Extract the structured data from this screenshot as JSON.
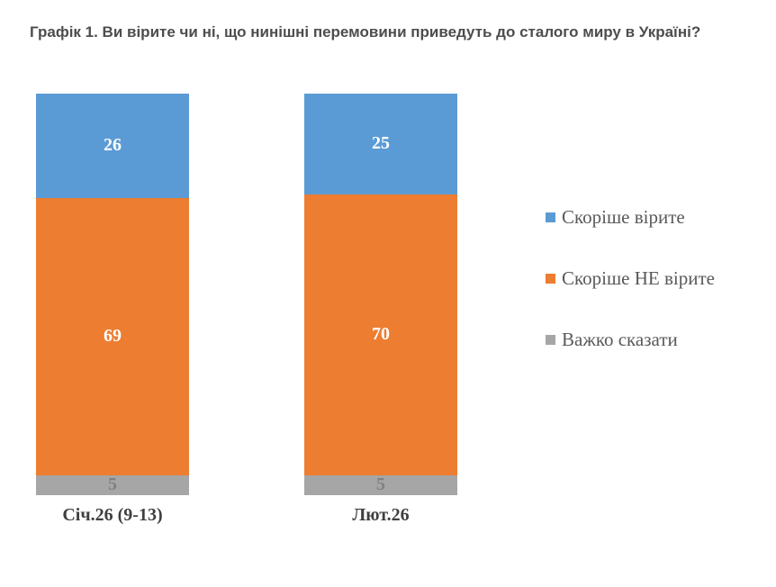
{
  "title": "Графік 1. Ви вірите чи ні, що нинішні перемовини приведуть до сталого миру в Україні?",
  "chart_data": {
    "type": "bar",
    "stacked": true,
    "orientation": "vertical",
    "categories": [
      "Січ.26 (9-13)",
      "Лют.26"
    ],
    "series": [
      {
        "name": "Скоріше вірите",
        "color": "#5b9bd5",
        "label_color": "#ffffff",
        "values": [
          26,
          25
        ]
      },
      {
        "name": "Скоріше НЕ вірите",
        "color": "#ed7d31",
        "label_color": "#ffffff",
        "values": [
          69,
          70
        ]
      },
      {
        "name": "Важко сказати",
        "color": "#a6a6a6",
        "label_color": "#808080",
        "values": [
          5,
          5
        ]
      }
    ],
    "ylim": [
      0,
      100
    ],
    "grid": false,
    "axes_shown": false,
    "legend_position": "right",
    "value_labels": "inside-center"
  }
}
